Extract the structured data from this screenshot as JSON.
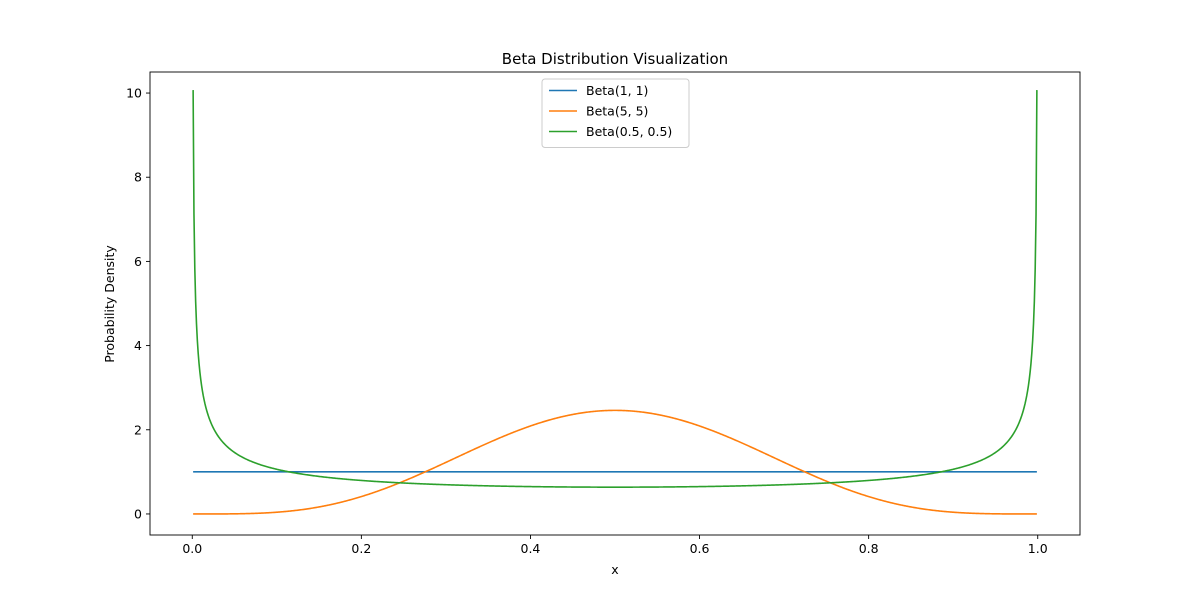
{
  "chart_data": {
    "type": "line",
    "title": "Beta Distribution Visualization",
    "xlabel": "x",
    "ylabel": "Probability Density",
    "xlim": [
      -0.05,
      1.05
    ],
    "ylim": [
      -0.5,
      10.5
    ],
    "xticks": [
      0.0,
      0.2,
      0.4,
      0.6,
      0.8,
      1.0
    ],
    "xtick_labels": [
      "0.0",
      "0.2",
      "0.4",
      "0.6",
      "0.8",
      "1.0"
    ],
    "yticks": [
      0,
      2,
      4,
      6,
      8,
      10
    ],
    "ytick_labels": [
      "0",
      "2",
      "4",
      "6",
      "8",
      "10"
    ],
    "grid": false,
    "legend_position": "top-center",
    "x_range": [
      0.001,
      0.999
    ],
    "series": [
      {
        "name": "Beta(1, 1)",
        "alpha": 1,
        "beta": 1,
        "color": "#1f77b4"
      },
      {
        "name": "Beta(5, 5)",
        "alpha": 5,
        "beta": 5,
        "color": "#ff7f0e"
      },
      {
        "name": "Beta(0.5, 0.5)",
        "alpha": 0.5,
        "beta": 0.5,
        "color": "#2ca02c"
      }
    ]
  }
}
